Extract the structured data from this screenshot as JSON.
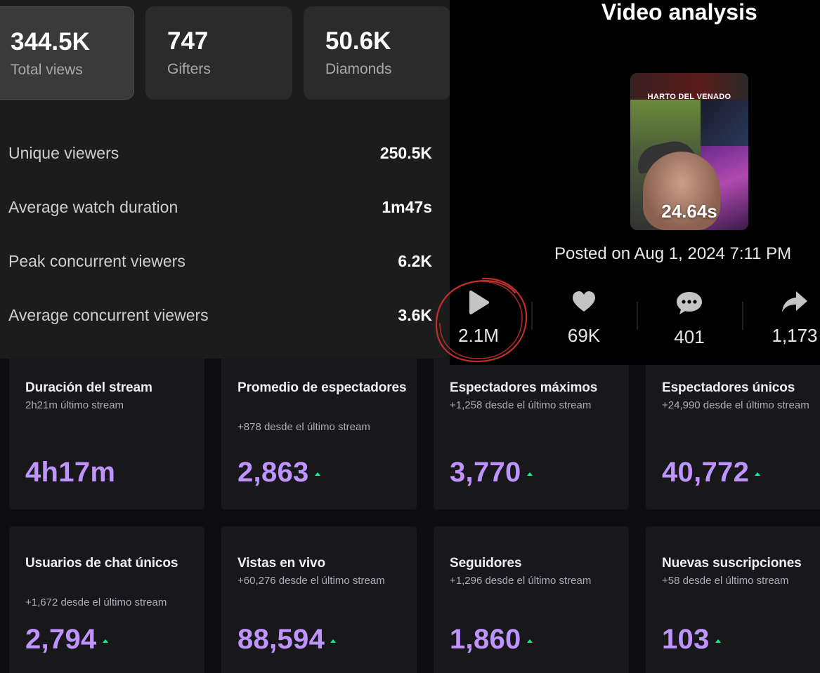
{
  "live_stats": {
    "kpis": [
      {
        "value": "344.5K",
        "label": "Total views"
      },
      {
        "value": "747",
        "label": "Gifters"
      },
      {
        "value": "50.6K",
        "label": "Diamonds"
      }
    ],
    "metrics": [
      {
        "label": "Unique viewers",
        "value": "250.5K"
      },
      {
        "label": "Average watch duration",
        "value": "1m47s"
      },
      {
        "label": "Peak concurrent viewers",
        "value": "6.2K"
      },
      {
        "label": "Average concurrent viewers",
        "value": "3.6K"
      }
    ]
  },
  "video_analysis": {
    "title": "Video analysis",
    "thumbnail": {
      "caption": "HARTO DEL VENADO",
      "duration": "24.64s"
    },
    "posted": "Posted on Aug 1, 2024 7:11 PM",
    "stats": [
      {
        "icon": "play-icon",
        "value": "2.1M"
      },
      {
        "icon": "heart-icon",
        "value": "69K"
      },
      {
        "icon": "comment-icon",
        "value": "401"
      },
      {
        "icon": "share-icon",
        "value": "1,173"
      }
    ],
    "annotation_color": "#c0302a"
  },
  "stream_stats": {
    "accent": "#bf94ff",
    "trend_color": "#00f593",
    "cards": [
      {
        "title": "Duración del stream",
        "subtitle": "2h21m último stream",
        "value": "4h17m"
      },
      {
        "title": "Promedio de espectadores",
        "subtitle": "+878 desde el último stream",
        "value": "2,863"
      },
      {
        "title": "Espectadores máximos",
        "subtitle": "+1,258 desde el último stream",
        "value": "3,770"
      },
      {
        "title": "Espectadores únicos",
        "subtitle": "+24,990 desde el último stream",
        "value": "40,772"
      },
      {
        "title": "Usuarios de chat únicos",
        "subtitle": "+1,672 desde el último stream",
        "value": "2,794"
      },
      {
        "title": "Vistas en vivo",
        "subtitle": "+60,276 desde el último stream",
        "value": "88,594"
      },
      {
        "title": "Seguidores",
        "subtitle": "+1,296 desde el último stream",
        "value": "1,860"
      },
      {
        "title": "Nuevas suscripciones",
        "subtitle": "+58 desde el último stream",
        "value": "103"
      }
    ]
  }
}
